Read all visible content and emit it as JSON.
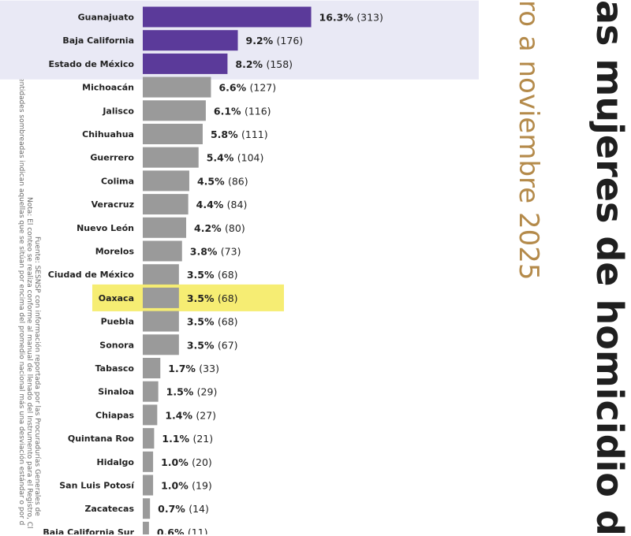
{
  "titles": {
    "main": "as mujeres de homicidio d",
    "sub": "ro a noviembre 2025"
  },
  "notes": {
    "line1": "Las entidades sombreadas indican aquellas que se sitúan por encima del promedio nacional más una desviación estándar o por d",
    "line2": "Nota: El conteo se realiza conforme al manual de llenado del Instrumento para el Registro, Cl",
    "line3": "Fuente: SESNSP con información reportada por las Procuradurías Generales de"
  },
  "colors": {
    "top_bar": "#5b3a9a",
    "bar": "#9a9a9a",
    "shade": "#e9e9f5",
    "highlight": "#f4ea5a"
  },
  "chart_data": {
    "type": "bar",
    "orientation": "horizontal",
    "categories": [
      "Guanajuato",
      "Baja California",
      "Estado de México",
      "Michoacán",
      "Jalisco",
      "Chihuahua",
      "Guerrero",
      "Colima",
      "Veracruz",
      "Nuevo León",
      "Morelos",
      "Ciudad de México",
      "Oaxaca",
      "Puebla",
      "Sonora",
      "Tabasco",
      "Sinaloa",
      "Chiapas",
      "Quintana Roo",
      "Hidalgo",
      "San Luis Potosí",
      "Zacatecas",
      "Baja California Sur"
    ],
    "values": [
      16.3,
      9.2,
      8.2,
      6.6,
      6.1,
      5.8,
      5.4,
      4.5,
      4.4,
      4.2,
      3.8,
      3.5,
      3.5,
      3.5,
      3.5,
      1.7,
      1.5,
      1.4,
      1.1,
      1.0,
      1.0,
      0.7,
      0.6
    ],
    "counts": [
      313,
      176,
      158,
      127,
      116,
      111,
      104,
      86,
      84,
      80,
      73,
      68,
      68,
      68,
      67,
      33,
      29,
      27,
      21,
      20,
      19,
      14,
      11
    ],
    "pct_labels": [
      "16.3%",
      "9.2%",
      "8.2%",
      "6.6%",
      "6.1%",
      "5.8%",
      "5.4%",
      "4.5%",
      "4.4%",
      "4.2%",
      "3.8%",
      "3.5%",
      "3.5%",
      "3.5%",
      "3.5%",
      "1.7%",
      "1.5%",
      "1.4%",
      "1.1%",
      "1.0%",
      "1.0%",
      "0.7%",
      "0.6%"
    ],
    "count_labels": [
      "(313)",
      "(176)",
      "(158)",
      "(127)",
      "(116)",
      "(111)",
      "(104)",
      "(86)",
      "(84)",
      "(80)",
      "(73)",
      "(68)",
      "(68)",
      "(68)",
      "(67)",
      "(33)",
      "(29)",
      "(27)",
      "(21)",
      "(20)",
      "(19)",
      "(14)",
      "(11)"
    ],
    "shaded_categories": [
      "Guanajuato",
      "Baja California",
      "Estado de México"
    ],
    "highlighted_category": "Oaxaca"
  }
}
